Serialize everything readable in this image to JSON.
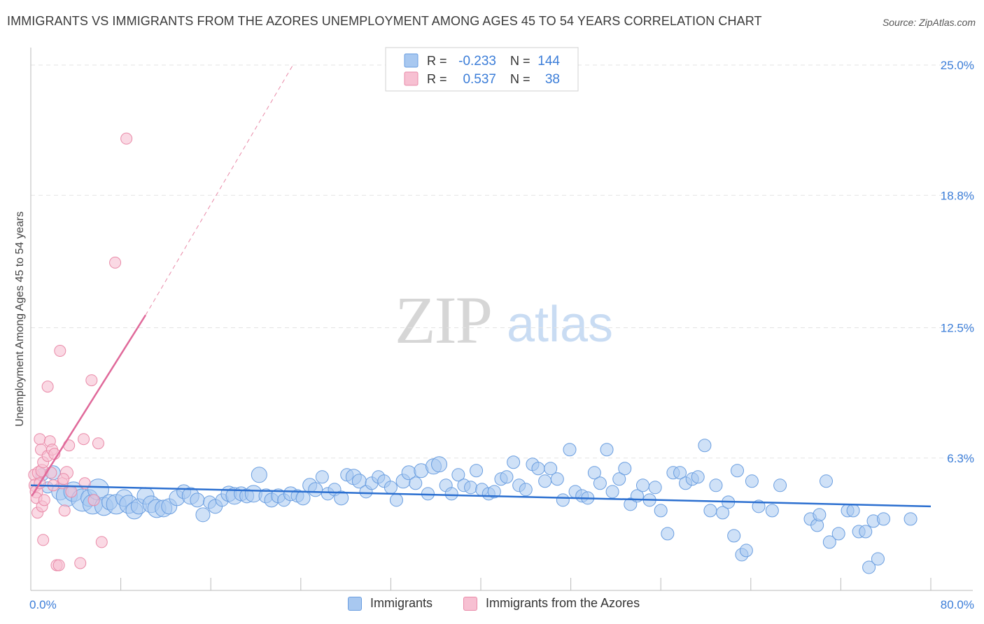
{
  "title": "IMMIGRANTS VS IMMIGRANTS FROM THE AZORES UNEMPLOYMENT AMONG AGES 45 TO 54 YEARS CORRELATION CHART",
  "source": "Source: ZipAtlas.com",
  "watermark": {
    "zip": "ZIP",
    "atlas": "atlas"
  },
  "colors": {
    "blue_fill": "#a8c8f0",
    "blue_stroke": "#6a9ee0",
    "blue_line": "#2b6fd0",
    "pink_fill": "#f7c0d2",
    "pink_stroke": "#e98aa8",
    "pink_line": "#e0699a",
    "tick_label": "#3b7dd8",
    "grid": "#e3e3e3"
  },
  "stats_legend": {
    "rows": [
      {
        "r_label": "R =",
        "r_value": "-0.233",
        "n_label": "N =",
        "n_value": "144",
        "series": "blue"
      },
      {
        "r_label": "R =",
        "r_value": "0.537",
        "n_label": "N =",
        "n_value": "38",
        "series": "pink"
      }
    ]
  },
  "bottom_legend": {
    "blue_label": "Immigrants",
    "pink_label": "Immigrants from the Azores"
  },
  "chart_data": {
    "type": "scatter",
    "title": "IMMIGRANTS VS IMMIGRANTS FROM THE AZORES UNEMPLOYMENT AMONG AGES 45 TO 54 YEARS CORRELATION CHART",
    "xlabel": "",
    "ylabel": "Unemployment Among Ages 45 to 54 years",
    "xlim": [
      0,
      80
    ],
    "ylim": [
      0,
      25.5
    ],
    "x_tick_labels": [
      "0.0%",
      "80.0%"
    ],
    "y_ticks": [
      6.3,
      12.5,
      18.8,
      25.0
    ],
    "y_tick_labels": [
      "6.3%",
      "12.5%",
      "18.8%",
      "25.0%"
    ],
    "grid": true,
    "series": [
      {
        "name": "Immigrants",
        "color": "blue",
        "trend": {
          "x0": 0,
          "y0": 5.0,
          "x1": 80,
          "y1": 4.0
        },
        "points": [
          [
            1,
            5.5,
            9
          ],
          [
            1.5,
            4.9,
            8
          ],
          [
            2,
            5.6,
            10
          ],
          [
            2.6,
            4.7,
            12
          ],
          [
            3.2,
            4.5,
            15
          ],
          [
            3.8,
            4.7,
            14
          ],
          [
            4.6,
            4.3,
            16
          ],
          [
            5.2,
            4.4,
            12
          ],
          [
            5.5,
            4.1,
            14
          ],
          [
            6,
            4.8,
            15
          ],
          [
            6.5,
            4.0,
            13
          ],
          [
            7,
            4.2,
            11
          ],
          [
            7.6,
            4.1,
            14
          ],
          [
            8.3,
            4.4,
            12
          ],
          [
            8.7,
            4.1,
            13
          ],
          [
            9.2,
            3.8,
            12
          ],
          [
            9.6,
            4.0,
            11
          ],
          [
            10.2,
            4.5,
            12
          ],
          [
            10.7,
            4.1,
            12
          ],
          [
            11.2,
            3.9,
            13
          ],
          [
            11.8,
            3.9,
            12
          ],
          [
            12.3,
            4.0,
            11
          ],
          [
            13,
            4.4,
            11
          ],
          [
            13.6,
            4.7,
            10
          ],
          [
            14.2,
            4.5,
            12
          ],
          [
            14.8,
            4.3,
            10
          ],
          [
            15.3,
            3.6,
            10
          ],
          [
            15.9,
            4.2,
            9
          ],
          [
            16.4,
            4.0,
            10
          ],
          [
            17,
            4.3,
            9
          ],
          [
            17.6,
            4.6,
            11
          ],
          [
            18.1,
            4.5,
            12
          ],
          [
            18.7,
            4.6,
            10
          ],
          [
            19.2,
            4.5,
            10
          ],
          [
            19.8,
            4.6,
            12
          ],
          [
            20.3,
            5.5,
            11
          ],
          [
            20.9,
            4.5,
            10
          ],
          [
            21.4,
            4.3,
            10
          ],
          [
            22,
            4.5,
            10
          ],
          [
            22.5,
            4.3,
            9
          ],
          [
            23.1,
            4.6,
            10
          ],
          [
            23.7,
            4.5,
            9
          ],
          [
            24.2,
            4.4,
            10
          ],
          [
            24.8,
            5.0,
            10
          ],
          [
            25.3,
            4.8,
            10
          ],
          [
            25.9,
            5.4,
            9
          ],
          [
            26.4,
            4.6,
            9
          ],
          [
            27,
            4.8,
            9
          ],
          [
            27.6,
            4.4,
            10
          ],
          [
            28.1,
            5.5,
            9
          ],
          [
            28.7,
            5.4,
            11
          ],
          [
            29.2,
            5.2,
            10
          ],
          [
            29.8,
            4.7,
            9
          ],
          [
            30.3,
            5.1,
            9
          ],
          [
            30.9,
            5.4,
            9
          ],
          [
            31.4,
            5.2,
            9
          ],
          [
            32,
            4.9,
            9
          ],
          [
            32.5,
            4.3,
            9
          ],
          [
            33.1,
            5.2,
            10
          ],
          [
            33.6,
            5.6,
            10
          ],
          [
            34.2,
            5.1,
            9
          ],
          [
            34.7,
            5.7,
            10
          ],
          [
            35.3,
            4.6,
            9
          ],
          [
            35.8,
            5.9,
            11
          ],
          [
            36.3,
            6.0,
            11
          ],
          [
            36.9,
            5.0,
            9
          ],
          [
            37.4,
            4.6,
            9
          ],
          [
            38,
            5.5,
            9
          ],
          [
            38.5,
            5.0,
            9
          ],
          [
            39.1,
            4.9,
            9
          ],
          [
            39.6,
            5.7,
            9
          ],
          [
            40.1,
            4.8,
            9
          ],
          [
            40.7,
            4.6,
            9
          ],
          [
            41.2,
            4.7,
            9
          ],
          [
            41.8,
            5.3,
            9
          ],
          [
            42.3,
            5.4,
            9
          ],
          [
            42.9,
            6.1,
            9
          ],
          [
            43.4,
            5.0,
            9
          ],
          [
            44,
            4.8,
            9
          ],
          [
            44.6,
            6.0,
            9
          ],
          [
            45.1,
            5.8,
            9
          ],
          [
            45.7,
            5.2,
            9
          ],
          [
            46.2,
            5.8,
            9
          ],
          [
            46.8,
            5.3,
            9
          ],
          [
            47.3,
            4.3,
            9
          ],
          [
            47.9,
            6.7,
            9
          ],
          [
            48.4,
            4.7,
            9
          ],
          [
            49,
            4.5,
            9
          ],
          [
            49.5,
            4.4,
            9
          ],
          [
            50.1,
            5.6,
            9
          ],
          [
            50.6,
            5.1,
            9
          ],
          [
            51.2,
            6.7,
            9
          ],
          [
            51.7,
            4.7,
            9
          ],
          [
            52.3,
            5.3,
            9
          ],
          [
            52.8,
            5.8,
            9
          ],
          [
            53.3,
            4.1,
            9
          ],
          [
            53.9,
            4.5,
            9
          ],
          [
            54.4,
            5.0,
            9
          ],
          [
            55,
            4.3,
            9
          ],
          [
            55.5,
            4.9,
            9
          ],
          [
            56,
            3.8,
            9
          ],
          [
            56.6,
            2.7,
            9
          ],
          [
            57.1,
            5.6,
            9
          ],
          [
            57.7,
            5.6,
            9
          ],
          [
            58.2,
            5.1,
            9
          ],
          [
            58.8,
            5.3,
            9
          ],
          [
            59.3,
            5.4,
            9
          ],
          [
            59.9,
            6.9,
            9
          ],
          [
            60.4,
            3.8,
            9
          ],
          [
            60.9,
            5.0,
            9
          ],
          [
            61.5,
            3.7,
            9
          ],
          [
            62,
            4.2,
            9
          ],
          [
            62.5,
            2.6,
            9
          ],
          [
            62.8,
            5.7,
            9
          ],
          [
            63.2,
            1.7,
            9
          ],
          [
            63.6,
            1.9,
            9
          ],
          [
            64.1,
            5.2,
            9
          ],
          [
            64.7,
            4.0,
            9
          ],
          [
            65.9,
            3.8,
            9
          ],
          [
            66.6,
            5.0,
            9
          ],
          [
            69.3,
            3.4,
            9
          ],
          [
            69.9,
            3.1,
            9
          ],
          [
            70.1,
            3.6,
            9
          ],
          [
            70.7,
            5.2,
            9
          ],
          [
            71,
            2.3,
            9
          ],
          [
            71.8,
            2.7,
            9
          ],
          [
            72.6,
            3.8,
            9
          ],
          [
            73.1,
            3.8,
            9
          ],
          [
            73.6,
            2.8,
            9
          ],
          [
            74.2,
            2.8,
            9
          ],
          [
            74.5,
            1.1,
            9
          ],
          [
            74.9,
            3.3,
            9
          ],
          [
            75.3,
            1.5,
            9
          ],
          [
            75.8,
            3.4,
            9
          ],
          [
            78.2,
            3.4,
            9
          ]
        ]
      },
      {
        "name": "Immigrants from the Azores",
        "color": "pink",
        "trend": {
          "x0": 0.1,
          "y0": 4.5,
          "x1": 10.2,
          "y1": 13.1,
          "dash_x1": 23.3,
          "dash_y1": 25.0
        },
        "points": [
          [
            0.3,
            5.5,
            8
          ],
          [
            0.4,
            5.0,
            9
          ],
          [
            0.5,
            4.7,
            9
          ],
          [
            0.5,
            4.4,
            8
          ],
          [
            0.6,
            3.7,
            8
          ],
          [
            0.7,
            5.6,
            9
          ],
          [
            0.8,
            5.1,
            8
          ],
          [
            0.8,
            7.2,
            8
          ],
          [
            0.9,
            6.7,
            8
          ],
          [
            1.0,
            4.0,
            8
          ],
          [
            1.0,
            5.7,
            9
          ],
          [
            1.1,
            6.1,
            8
          ],
          [
            1.2,
            4.3,
            8
          ],
          [
            1.1,
            2.4,
            8
          ],
          [
            1.5,
            9.7,
            8
          ],
          [
            1.5,
            6.4,
            8
          ],
          [
            1.7,
            7.1,
            8
          ],
          [
            1.8,
            5.6,
            8
          ],
          [
            1.9,
            6.7,
            8
          ],
          [
            2.1,
            6.5,
            8
          ],
          [
            2.3,
            1.2,
            8
          ],
          [
            2.5,
            1.2,
            8
          ],
          [
            2.6,
            11.4,
            8
          ],
          [
            2.8,
            5.1,
            8
          ],
          [
            3.0,
            3.8,
            8
          ],
          [
            3.2,
            5.6,
            9
          ],
          [
            3.4,
            6.9,
            8
          ],
          [
            3.6,
            4.7,
            8
          ],
          [
            2.9,
            5.3,
            8
          ],
          [
            2.0,
            5.0,
            8
          ],
          [
            4.4,
            1.3,
            8
          ],
          [
            4.7,
            7.2,
            8
          ],
          [
            4.8,
            5.1,
            8
          ],
          [
            5.4,
            10.0,
            8
          ],
          [
            5.6,
            4.3,
            8
          ],
          [
            6,
            7.0,
            8
          ],
          [
            6.3,
            2.3,
            8
          ],
          [
            7.5,
            15.6,
            8
          ],
          [
            8.5,
            21.5,
            8
          ]
        ]
      }
    ]
  }
}
